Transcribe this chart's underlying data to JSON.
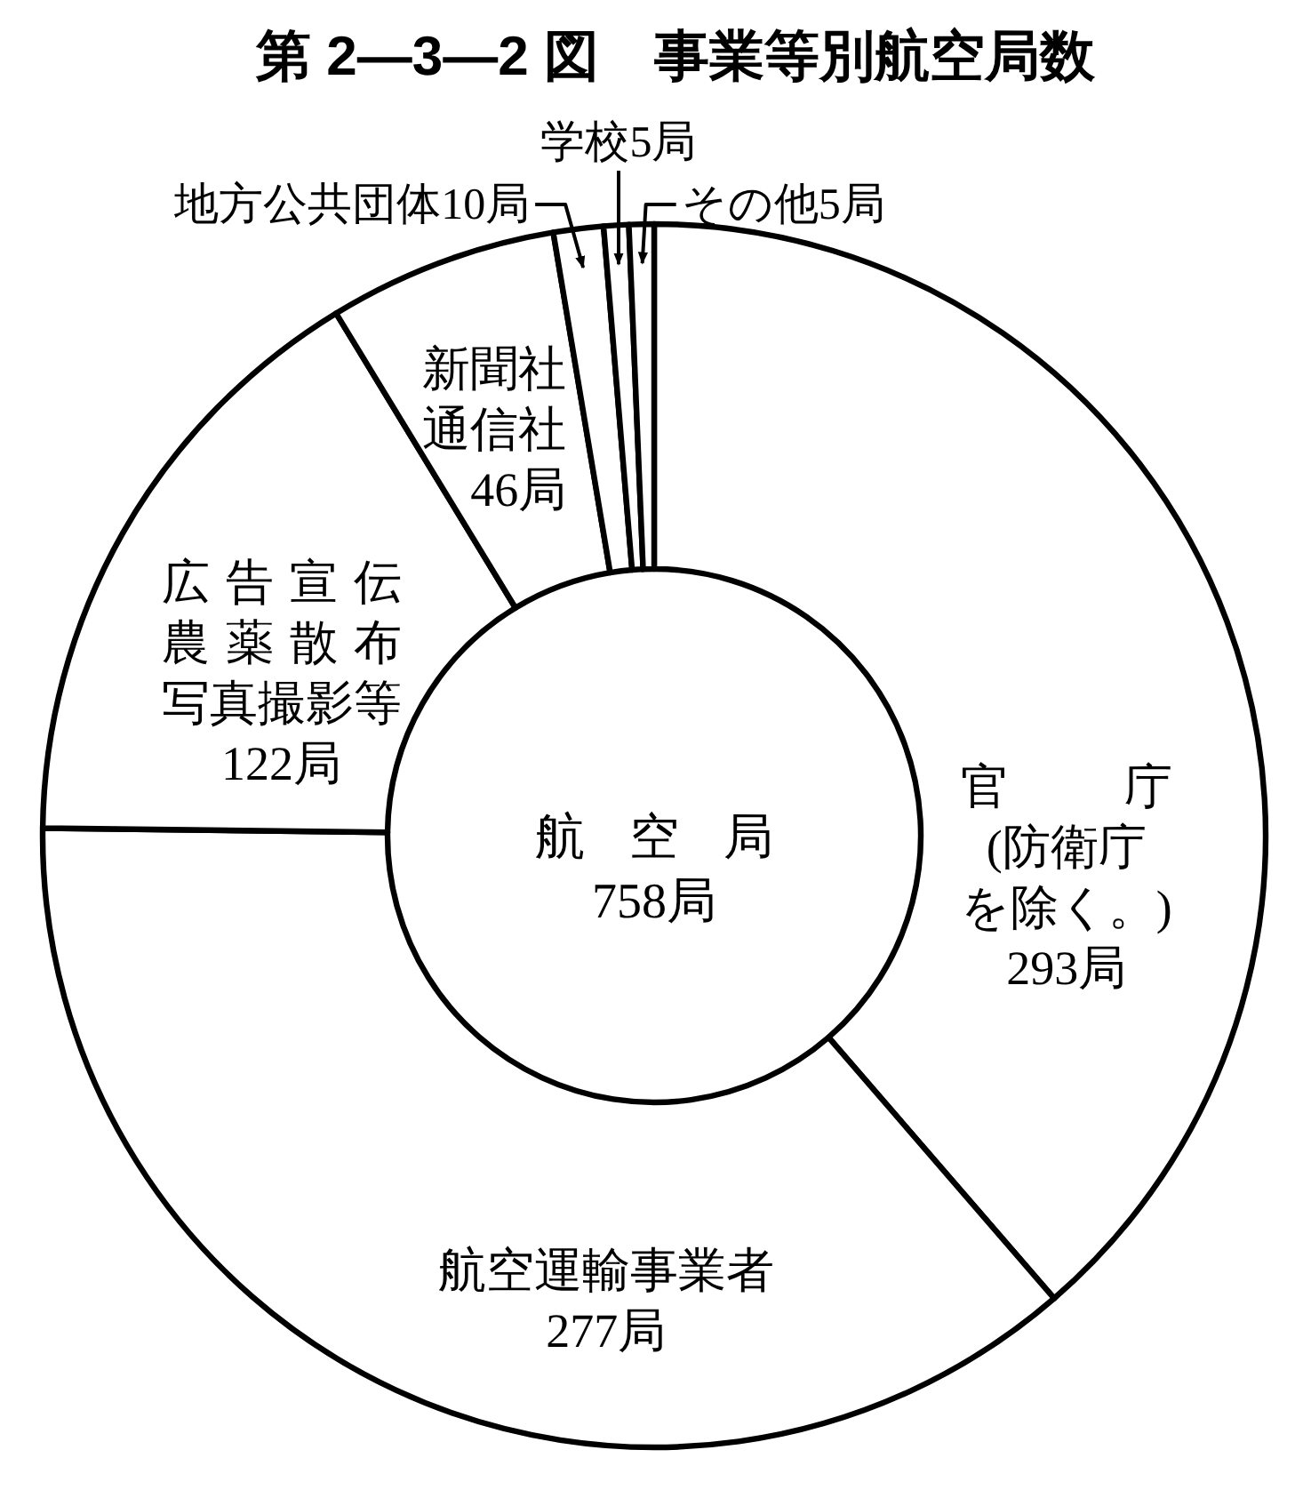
{
  "chart_data": {
    "type": "donut",
    "title": "第 2—3—2 図　事業等別航空局数",
    "categories": [
      "官庁(防衛庁を除く。)",
      "航空運輸事業者",
      "広告宣伝農薬散布写真撮影等",
      "新聞社通信社",
      "地方公共団体",
      "学校",
      "その他"
    ],
    "values": [
      293,
      277,
      122,
      46,
      10,
      5,
      5
    ],
    "value_labels": [
      "293局",
      "277局",
      "122局",
      "46局",
      "10局",
      "5局",
      "5局"
    ],
    "colors": [
      "#ffffff",
      "#ffffff",
      "#ffffff",
      "#ffffff",
      "#ffffff",
      "#ffffff",
      "#ffffff"
    ],
    "annotations": [
      "航空局\n758局"
    ]
  }
}
